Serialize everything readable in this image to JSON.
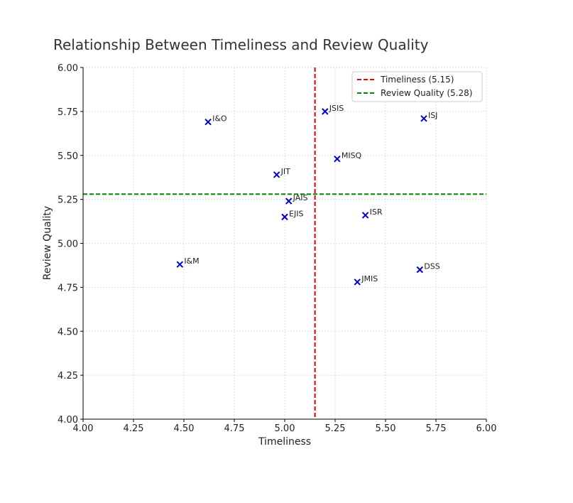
{
  "chart_data": {
    "type": "scatter",
    "title": "Relationship Between Timeliness and Review Quality",
    "xlabel": "Timeliness",
    "ylabel": "Review Quality",
    "xlim": [
      4.0,
      6.0
    ],
    "ylim": [
      4.0,
      6.0
    ],
    "xticks": [
      "4.00",
      "4.25",
      "4.50",
      "4.75",
      "5.00",
      "5.25",
      "5.50",
      "5.75",
      "6.00"
    ],
    "yticks": [
      "4.00",
      "4.25",
      "4.50",
      "4.75",
      "5.00",
      "5.25",
      "5.50",
      "5.75",
      "6.00"
    ],
    "grid": true,
    "marker": "x",
    "marker_color": "#0000cc",
    "points": [
      {
        "label": "I&O",
        "x": 4.62,
        "y": 5.69
      },
      {
        "label": "JSIS",
        "x": 5.2,
        "y": 5.75
      },
      {
        "label": "ISJ",
        "x": 5.69,
        "y": 5.71
      },
      {
        "label": "MISQ",
        "x": 5.26,
        "y": 5.48
      },
      {
        "label": "JIT",
        "x": 4.96,
        "y": 5.39
      },
      {
        "label": "JAIS",
        "x": 5.02,
        "y": 5.24
      },
      {
        "label": "EJIS",
        "x": 5.0,
        "y": 5.15
      },
      {
        "label": "ISR",
        "x": 5.4,
        "y": 5.16
      },
      {
        "label": "I&M",
        "x": 4.48,
        "y": 4.88
      },
      {
        "label": "DSS",
        "x": 5.67,
        "y": 4.85
      },
      {
        "label": "JMIS",
        "x": 5.36,
        "y": 4.78
      }
    ],
    "reference_lines": [
      {
        "orientation": "vertical",
        "value": 5.15,
        "color": "#dd0000",
        "style": "dashed",
        "legend": "Timeliness (5.15)"
      },
      {
        "orientation": "horizontal",
        "value": 5.28,
        "color": "#008800",
        "style": "dashed",
        "legend": "Review Quality (5.28)"
      }
    ],
    "legend_placement": "top-right"
  }
}
